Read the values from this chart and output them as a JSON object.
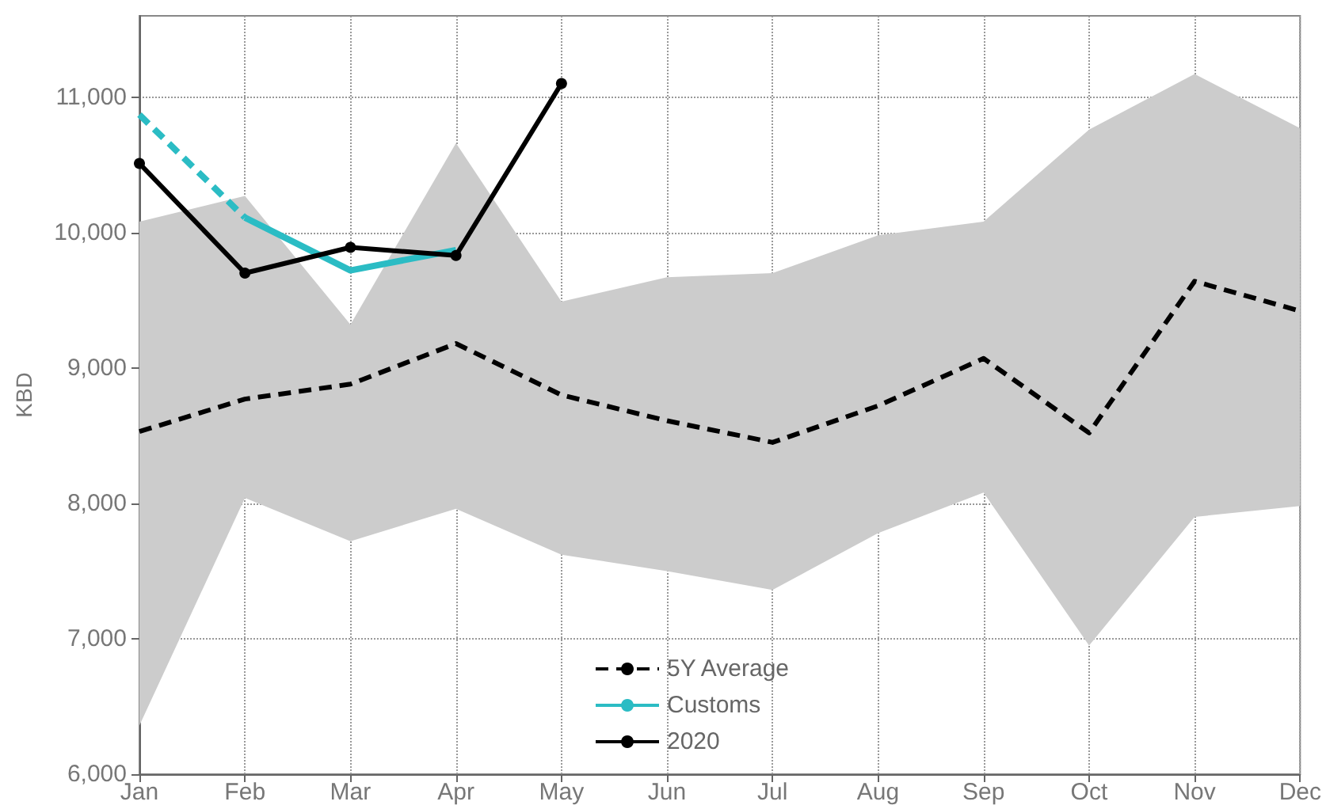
{
  "chart_data": {
    "type": "line",
    "ylabel": "KBD",
    "categories": [
      "Jan",
      "Feb",
      "Mar",
      "Apr",
      "May",
      "Jun",
      "Jul",
      "Aug",
      "Sep",
      "Oct",
      "Nov",
      "Dec"
    ],
    "ylim": [
      6000,
      11600
    ],
    "yticks": [
      {
        "value": 6000,
        "label": "6,000"
      },
      {
        "value": 7000,
        "label": "7,000"
      },
      {
        "value": 8000,
        "label": "8,000"
      },
      {
        "value": 9000,
        "label": "9,000"
      },
      {
        "value": 10000,
        "label": "10,000"
      },
      {
        "value": 11000,
        "label": "11,000"
      }
    ],
    "grid": true,
    "legend": "bottom",
    "series": [
      {
        "name": "5Y Average",
        "color": "#000000",
        "line_style": "dashed",
        "marker": "none",
        "values": [
          8530,
          8770,
          8880,
          9180,
          8800,
          8610,
          8450,
          8720,
          9070,
          8520,
          9640,
          9420
        ],
        "lower": [
          6360,
          8040,
          7720,
          7960,
          7620,
          7500,
          7360,
          7780,
          8080,
          6950,
          7900,
          7980
        ],
        "upper": [
          10080,
          10270,
          9320,
          10660,
          9490,
          9670,
          9700,
          9980,
          10080,
          10760,
          11170,
          10770
        ]
      },
      {
        "color": "#2bbcc4",
        "line_style": "dashed",
        "marker": "none",
        "values": [
          10870,
          10110,
          null,
          null,
          null,
          null,
          null,
          null,
          null,
          null,
          null,
          null
        ]
      },
      {
        "name": "Customs",
        "color": "#2bbcc4",
        "line_style": "solid",
        "marker": "none",
        "values": [
          null,
          10110,
          9720,
          9870,
          null,
          null,
          null,
          null,
          null,
          null,
          null,
          null
        ]
      },
      {
        "name": "2020",
        "color": "#000000",
        "line_style": "solid",
        "marker": "circle",
        "values": [
          10510,
          9700,
          9890,
          9830,
          11100,
          null,
          null,
          null,
          null,
          null,
          null,
          null
        ]
      }
    ]
  }
}
